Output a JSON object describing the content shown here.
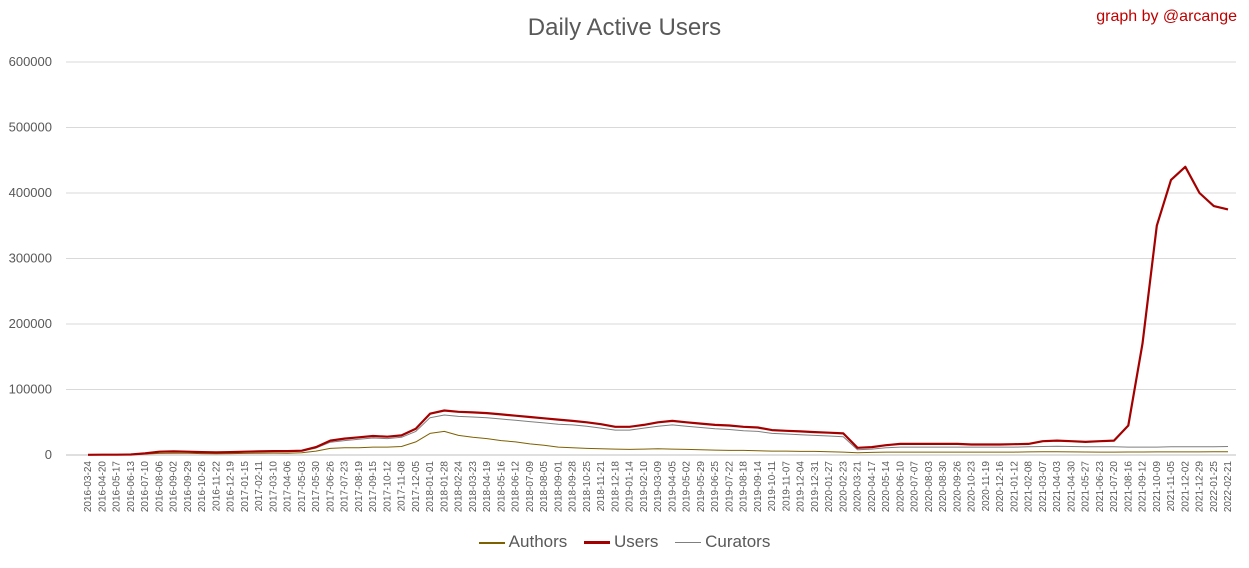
{
  "chart_data": {
    "type": "line",
    "title": "Daily Active Users",
    "credit": "graph by @arcange",
    "ylim": [
      0,
      600000
    ],
    "y_ticks": [
      "0",
      "100000",
      "200000",
      "300000",
      "400000",
      "500000",
      "600000"
    ],
    "grid": true,
    "legend_position": "bottom",
    "x_start": "2016-03-24",
    "x_step_days": 27,
    "x": [
      "2016-03-24",
      "2016-04-20",
      "2016-05-17",
      "2016-06-13",
      "2016-07-10",
      "2016-08-06",
      "2016-09-02",
      "2016-09-29",
      "2016-10-26",
      "2016-11-22",
      "2016-12-19",
      "2017-01-15",
      "2017-02-11",
      "2017-03-10",
      "2017-04-06",
      "2017-05-03",
      "2017-05-30",
      "2017-06-26",
      "2017-07-23",
      "2017-08-19",
      "2017-09-15",
      "2017-10-12",
      "2017-11-08",
      "2017-12-05",
      "2018-01-01",
      "2018-01-28",
      "2018-02-24",
      "2018-03-23",
      "2018-04-19",
      "2018-05-16",
      "2018-06-12",
      "2018-07-09",
      "2018-08-05",
      "2018-09-01",
      "2018-09-28",
      "2018-10-25",
      "2018-11-21",
      "2018-12-18",
      "2019-01-14",
      "2019-02-10",
      "2019-03-09",
      "2019-04-05",
      "2019-05-02",
      "2019-05-29",
      "2019-06-25",
      "2019-07-22",
      "2019-08-18",
      "2019-09-14",
      "2019-10-11",
      "2019-11-07",
      "2019-12-04",
      "2019-12-31",
      "2020-01-27",
      "2020-02-23",
      "2020-03-21",
      "2020-04-17",
      "2020-05-14",
      "2020-06-10",
      "2020-07-07",
      "2020-08-03",
      "2020-08-30",
      "2020-09-26",
      "2020-10-23",
      "2020-11-19",
      "2020-12-16",
      "2021-01-12",
      "2021-02-08",
      "2021-03-07",
      "2021-04-03",
      "2021-04-30",
      "2021-05-27",
      "2021-06-23",
      "2021-07-20",
      "2021-08-16",
      "2021-09-12",
      "2021-10-09",
      "2021-11-05",
      "2021-12-02",
      "2021-12-29",
      "2022-01-25",
      "2022-02-21"
    ],
    "series": [
      {
        "name": "Authors",
        "color": "#7f6000",
        "values": [
          200,
          300,
          400,
          600,
          1500,
          2500,
          2800,
          2600,
          2200,
          2000,
          2200,
          2400,
          2700,
          2900,
          2700,
          3500,
          6000,
          10000,
          11000,
          11000,
          12000,
          12000,
          13000,
          20000,
          33000,
          36000,
          30000,
          27000,
          25000,
          22000,
          20000,
          17000,
          15000,
          12000,
          11000,
          10000,
          9500,
          9000,
          8500,
          9000,
          9500,
          9000,
          8500,
          8000,
          7500,
          7000,
          7000,
          6500,
          6000,
          6000,
          5500,
          5500,
          5000,
          4500,
          3500,
          4000,
          4500,
          4500,
          4500,
          4500,
          4500,
          4500,
          4500,
          4500,
          4500,
          4500,
          4800,
          5000,
          5000,
          4800,
          4600,
          4500,
          4500,
          4600,
          4600,
          4700,
          4700,
          4700,
          4800,
          4900,
          5000
        ]
      },
      {
        "name": "Users",
        "color": "#a50000",
        "values": [
          300,
          400,
          500,
          800,
          2500,
          5000,
          5500,
          5000,
          4500,
          4000,
          4500,
          5000,
          5500,
          6000,
          6000,
          6500,
          12000,
          22000,
          25000,
          27000,
          29000,
          28000,
          30000,
          40000,
          63000,
          68000,
          66000,
          65000,
          64000,
          62000,
          60000,
          58000,
          56000,
          54000,
          52000,
          50000,
          47000,
          43000,
          43000,
          46000,
          50000,
          52000,
          50000,
          48000,
          46000,
          45000,
          43000,
          42000,
          38000,
          37000,
          36000,
          35000,
          34000,
          33000,
          11000,
          12000,
          15000,
          17000,
          17000,
          17000,
          17000,
          17000,
          16000,
          16000,
          16000,
          16500,
          17000,
          21000,
          22000,
          21000,
          20000,
          21000,
          22000,
          45000,
          170000,
          350000,
          420000,
          440000,
          400000,
          380000,
          375000
        ]
      },
      {
        "name": "Curators",
        "color": "#7f7f7f",
        "values": [
          300,
          400,
          500,
          800,
          2200,
          4500,
          5000,
          4500,
          4000,
          3600,
          4000,
          4500,
          5000,
          5500,
          5500,
          6000,
          10500,
          19500,
          22000,
          24000,
          26000,
          25000,
          27000,
          36000,
          57000,
          61000,
          59000,
          58000,
          57000,
          55000,
          53000,
          51000,
          49000,
          47000,
          46000,
          44000,
          41000,
          38000,
          38000,
          41000,
          44000,
          46000,
          44000,
          42000,
          40000,
          39000,
          37000,
          36000,
          33000,
          32000,
          31000,
          30000,
          29000,
          28000,
          8000,
          9000,
          11000,
          12000,
          12000,
          12000,
          12000,
          12000,
          12000,
          12000,
          12000,
          12000,
          12500,
          13000,
          13500,
          13000,
          12500,
          12500,
          12500,
          12000,
          12000,
          12000,
          12500,
          12500,
          12500,
          12500,
          13000
        ]
      }
    ]
  }
}
